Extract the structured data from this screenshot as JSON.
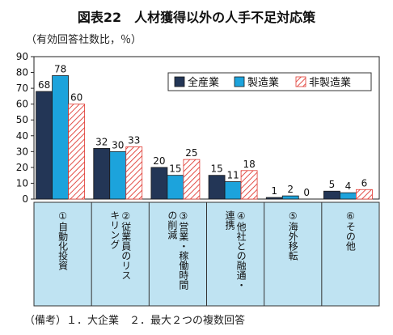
{
  "chart_data": {
    "type": "bar",
    "title": "図表22　人材獲得以外の人手不足対応策",
    "unit_label": "（有効回答社数比，％）",
    "note": "（備考）１．大企業　２．最大２つの複数回答",
    "ylim": [
      0,
      90
    ],
    "yticks": [
      0,
      10,
      20,
      30,
      40,
      50,
      60,
      70,
      80,
      90
    ],
    "categories": [
      "①自動化投資",
      "②従業員のリスキリング",
      "③営業・稼働時間の削減",
      "④他社との融通・連携",
      "⑤海外移転",
      "⑥その他"
    ],
    "category_lines": [
      [
        "①自動化投資"
      ],
      [
        "②従業員のリス",
        "キリング"
      ],
      [
        "③営業・稼働時間",
        "の削減"
      ],
      [
        "④他社との融通・",
        "連携"
      ],
      [
        "⑤海外移転"
      ],
      [
        "⑥その他"
      ]
    ],
    "series": [
      {
        "name": "全産業",
        "values": [
          68,
          32,
          20,
          15,
          1,
          5
        ],
        "color": "#233656",
        "pattern": "solid"
      },
      {
        "name": "製造業",
        "values": [
          78,
          30,
          15,
          11,
          2,
          4
        ],
        "color": "#1ca3dc",
        "pattern": "solid"
      },
      {
        "name": "非製造業",
        "values": [
          60,
          33,
          25,
          18,
          0,
          6
        ],
        "color": "#e03a32",
        "pattern": "hatch"
      }
    ],
    "legend_position": "top-right",
    "grid": false
  }
}
